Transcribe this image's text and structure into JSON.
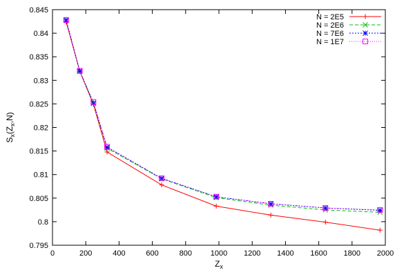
{
  "chart_data": {
    "type": "line",
    "title": "",
    "xlabel": {
      "main": "Z",
      "sub": "x"
    },
    "ylabel": {
      "main": "S",
      "sub": "x",
      "paren_open": "(Z",
      "paren_sub": "x",
      "paren_close": ",N)"
    },
    "xlim": [
      0,
      2000
    ],
    "ylim": [
      0.795,
      0.845
    ],
    "x_ticks": [
      0,
      200,
      400,
      600,
      800,
      1000,
      1200,
      1400,
      1600,
      1800,
      2000
    ],
    "x_tick_labels": [
      "0",
      "200",
      "400",
      "600",
      "800",
      "1000",
      "1200",
      "1400",
      "1600",
      "1800",
      "2000"
    ],
    "y_ticks": [
      0.795,
      0.8,
      0.805,
      0.81,
      0.815,
      0.82,
      0.825,
      0.83,
      0.835,
      0.84,
      0.845
    ],
    "y_tick_labels": [
      "0.795",
      "0.8",
      "0.805",
      "0.81",
      "0.815",
      "0.82",
      "0.825",
      "0.83",
      "0.835",
      "0.84",
      "0.845"
    ],
    "grid": false,
    "legend_position": "top-right",
    "series": [
      {
        "name": "N = 2E5",
        "color": "#ff0000",
        "marker": "plus",
        "dash": "solid",
        "x": [
          82,
          164,
          246,
          328,
          656,
          984,
          1312,
          1640,
          1968
        ],
        "y": [
          0.8424,
          0.8319,
          0.8249,
          0.8148,
          0.8078,
          0.8033,
          0.8014,
          0.7999,
          0.7982
        ]
      },
      {
        "name": "N = 2E6",
        "color": "#00c000",
        "marker": "cross",
        "dash": "dashed",
        "x": [
          82,
          164,
          246,
          328,
          656,
          984,
          1312,
          1640,
          1968
        ],
        "y": [
          0.8427,
          0.8319,
          0.8251,
          0.8156,
          0.8091,
          0.8051,
          0.8035,
          0.8025,
          0.802
        ]
      },
      {
        "name": "N = 7E6",
        "color": "#0000ff",
        "marker": "star",
        "dash": "short-dash",
        "x": [
          82,
          164,
          246,
          328,
          656,
          984,
          1312,
          1640,
          1968
        ],
        "y": [
          0.8428,
          0.832,
          0.8252,
          0.8158,
          0.8092,
          0.8053,
          0.8038,
          0.8029,
          0.8024
        ]
      },
      {
        "name": "N = 1E7",
        "color": "#ff00ff",
        "marker": "square",
        "dash": "dotted",
        "x": [
          82,
          164,
          246,
          328,
          656,
          984,
          1312,
          1640,
          1968
        ],
        "y": [
          0.8428,
          0.832,
          0.8254,
          0.8159,
          0.8092,
          0.8053,
          0.8038,
          0.8029,
          0.8025
        ]
      }
    ]
  }
}
